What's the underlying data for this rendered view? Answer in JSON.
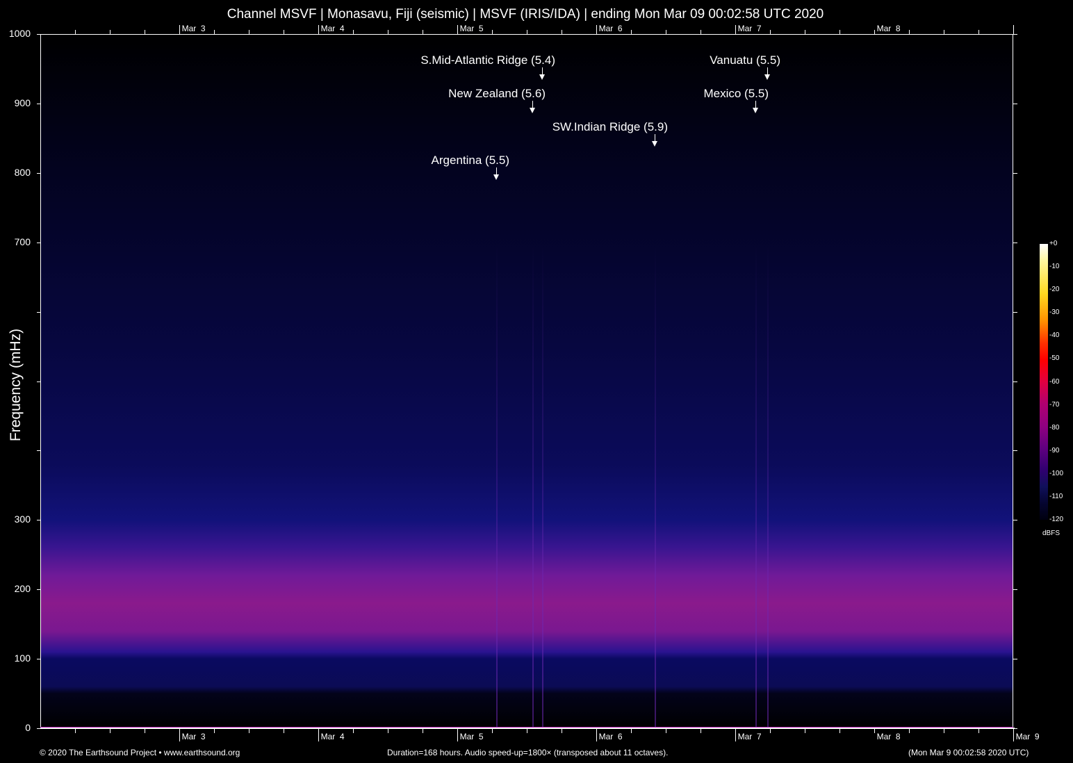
{
  "chart_data": {
    "type": "heatmap",
    "title": "Channel MSVF | Monasavu, Fiji (seismic) | MSVF (IRIS/IDA) | ending Mon Mar 09 00:02:58 UTC 2020",
    "ylabel": "Frequency (mHz)",
    "xlabel": "",
    "ylim": [
      0,
      1000
    ],
    "xlim_hours": [
      0,
      168
    ],
    "y_ticks": [
      0,
      100,
      200,
      300,
      400,
      500,
      600,
      700,
      800,
      900,
      1000
    ],
    "y_tick_labels": [
      "0",
      "100",
      "200",
      "300",
      "",
      "",
      "",
      "700",
      "800",
      "900",
      "1000"
    ],
    "x_ticks_hours_start_offset": 23.95,
    "x_day_labels_top": [
      "Mar  3",
      "Mar  4",
      "Mar  5",
      "Mar  6",
      "Mar  7",
      "Mar  8"
    ],
    "x_day_labels_bottom": [
      "Mar  3",
      "Mar  4",
      "Mar  5",
      "Mar  6",
      "Mar  7",
      "Mar  8",
      "Mar  9"
    ],
    "minor_tick_hours": 6,
    "colorbar": {
      "unit": "dBFS",
      "ticks": [
        "+0",
        "-10",
        "-20",
        "-30",
        "-40",
        "-50",
        "-60",
        "-70",
        "-80",
        "-90",
        "-100",
        "-110",
        "-120"
      ],
      "range": [
        -120,
        0
      ]
    },
    "annotations": [
      {
        "label": "S.Mid-Atlantic Ridge (5.4)",
        "hour": 86.6,
        "freq": 934
      },
      {
        "label": "New Zealand (5.6)",
        "hour": 85.0,
        "freq": 886
      },
      {
        "label": "SW.Indian Ridge (5.9)",
        "hour": 106.1,
        "freq": 838
      },
      {
        "label": "Argentina (5.5)",
        "hour": 78.7,
        "freq": 790
      },
      {
        "label": "Vanuatu (5.5)",
        "hour": 125.5,
        "freq": 934
      },
      {
        "label": "Mexico (5.5)",
        "hour": 123.5,
        "freq": 886
      }
    ],
    "colors": {
      "band": "#8a1a8c",
      "noise": "#0b0b5a",
      "axis": "#ffffff"
    }
  },
  "footer": {
    "copyright": "© 2020 The Earthsound Project • www.earthsound.org",
    "info": "Duration=168 hours. Audio speed-up=1800× (transposed about 11 octaves).",
    "timestamp": "(Mon Mar  9 00:02:58 2020 UTC)"
  }
}
